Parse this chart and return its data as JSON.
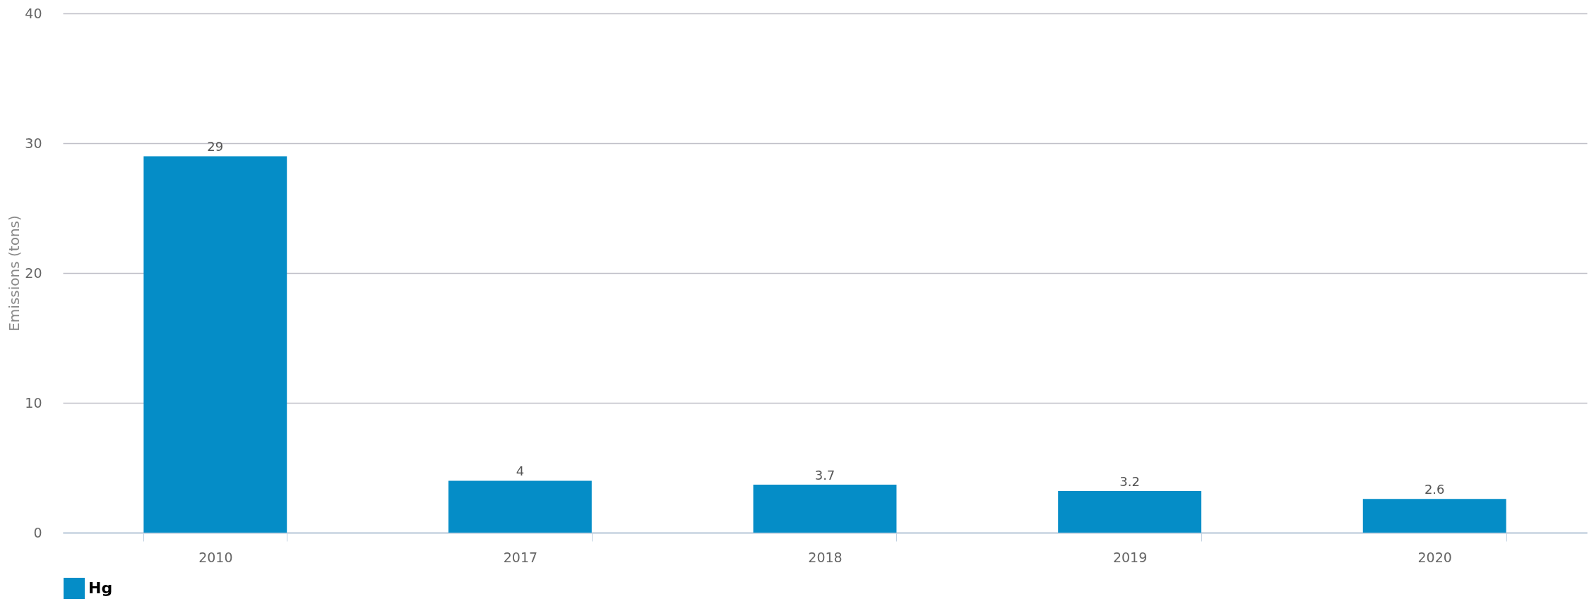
{
  "chart_data": {
    "type": "bar",
    "ylabel": "Emissions (tons)",
    "categories": [
      "2010",
      "2017",
      "2018",
      "2019",
      "2020"
    ],
    "series": [
      {
        "name": "Hg",
        "color": "#058dc7",
        "values": [
          29,
          4,
          3.7,
          3.2,
          2.6
        ]
      }
    ],
    "ylim": [
      0,
      40
    ],
    "yticks": [
      0,
      10,
      20,
      30,
      40
    ],
    "grid": "y",
    "data_labels": true,
    "legend": "bottom"
  }
}
